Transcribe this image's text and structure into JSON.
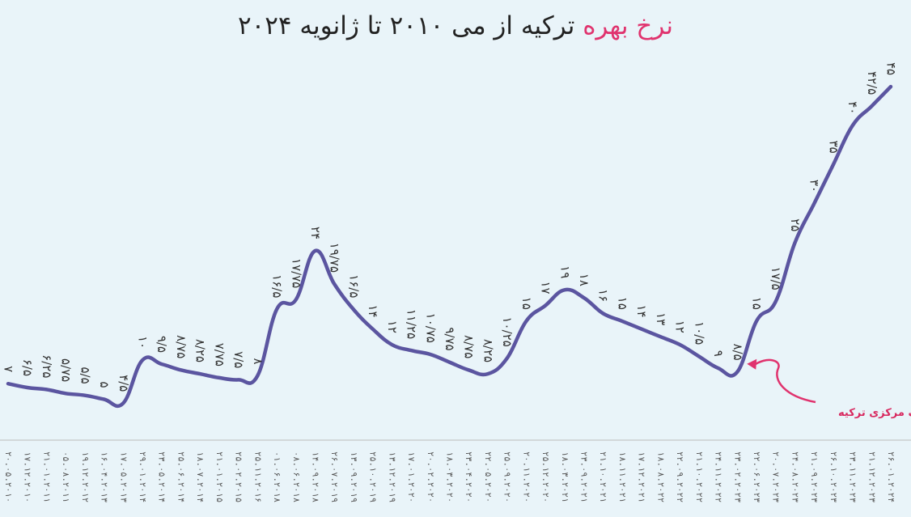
{
  "title": {
    "part1": "نرخ بهره",
    "part2": "ترکیه از می ۲۰۱۰ تا ژانویه ۲۰۲۴"
  },
  "colors": {
    "line": "#5b55a0",
    "accent": "#e0336e",
    "text": "#333333",
    "axis": "#bbbbbb"
  },
  "chart_data": {
    "type": "line",
    "title": "نرخ بهره ترکیه از می ۲۰۱۰ تا ژانویه ۲۰۲۴",
    "ylabel": "",
    "xlabel": "",
    "ylim": [
      0,
      50
    ],
    "grid": false,
    "points": [
      {
        "date": "۲۰.۰۵.۲۰۱۰",
        "value": 7,
        "label": "۷"
      },
      {
        "date": "۱۷.۱۲.۲۰۱۰",
        "value": 6.5,
        "label": "۶/۵"
      },
      {
        "date": "۲۱.۰۱.۲۰۱۱",
        "value": 6.25,
        "label": "۶/۲۵"
      },
      {
        "date": "۰۵.۰۸.۲۰۱۱",
        "value": 5.75,
        "label": "۵/۷۵"
      },
      {
        "date": "۱۹.۱۲.۲۰۱۲",
        "value": 5.5,
        "label": "۵/۵"
      },
      {
        "date": "۱۶.۰۴.۲۰۱۳",
        "value": 5,
        "label": "۵"
      },
      {
        "date": "۱۷.۰۵.۲۰۱۳",
        "value": 4.5,
        "label": "۴/۵"
      },
      {
        "date": "۲۹.۰۱.۲۰۱۴",
        "value": 10,
        "label": "۱۰"
      },
      {
        "date": "۲۳.۰۵.۲۰۱۴",
        "value": 9.5,
        "label": "۹/۵"
      },
      {
        "date": "۲۵.۰۶.۲۰۱۴",
        "value": 8.75,
        "label": "۸/۷۵"
      },
      {
        "date": "۱۸.۰۷.۲۰۱۴",
        "value": 8.25,
        "label": "۸/۲۵"
      },
      {
        "date": "۲۱.۰۱.۲۰۱۵",
        "value": 7.75,
        "label": "۷/۷۵"
      },
      {
        "date": "۲۵.۰۲.۲۰۱۵",
        "value": 7.5,
        "label": "۷/۵"
      },
      {
        "date": "۲۵.۱۱.۲۰۱۶",
        "value": 8,
        "label": "۸"
      },
      {
        "date": "۰۱.۰۶.۲۰۱۸",
        "value": 16.5,
        "label": "۱۶/۵"
      },
      {
        "date": "۰۸.۰۶.۲۰۱۸",
        "value": 17.75,
        "label": "۱۷/۷۵"
      },
      {
        "date": "۱۴.۰۹.۲۰۱۸",
        "value": 24,
        "label": "۲۴"
      },
      {
        "date": "۲۶.۰۷.۲۰۱۹",
        "value": 19.75,
        "label": "۱۹/۷۵"
      },
      {
        "date": "۱۳.۰۹.۲۰۱۹",
        "value": 16.5,
        "label": "۱۶/۵"
      },
      {
        "date": "۲۵.۱۰.۲۰۱۹",
        "value": 14,
        "label": "۱۴"
      },
      {
        "date": "۱۳.۱۲.۲۰۱۹",
        "value": 12,
        "label": "۱۲"
      },
      {
        "date": "۱۷.۰۱.۲۰۲۰",
        "value": 11.25,
        "label": "۱۱/۲۵"
      },
      {
        "date": "۲۰.۰۲.۲۰۲۰",
        "value": 10.75,
        "label": "۱۰/۷۵"
      },
      {
        "date": "۱۸.۰۳.۲۰۲۰",
        "value": 9.75,
        "label": "۹/۷۵"
      },
      {
        "date": "۲۳.۰۴.۲۰۲۰",
        "value": 8.75,
        "label": "۸/۷۵"
      },
      {
        "date": "۲۲.۰۵.۲۰۲۰",
        "value": 8.25,
        "label": "۸/۲۵"
      },
      {
        "date": "۲۵.۰۹.۲۰۲۰",
        "value": 10.25,
        "label": "۱۰/۲۵"
      },
      {
        "date": "۲۰.۱۱.۲۰۲۰",
        "value": 15,
        "label": "۱۵"
      },
      {
        "date": "۲۵.۱۲.۲۰۲۰",
        "value": 17,
        "label": "۱۷"
      },
      {
        "date": "۱۸.۰۳.۲۰۲۱",
        "value": 19,
        "label": "۱۹"
      },
      {
        "date": "۲۳.۰۹.۲۰۲۱",
        "value": 18,
        "label": "۱۸"
      },
      {
        "date": "۲۱.۱۰.۲۰۲۱",
        "value": 16,
        "label": "۱۶"
      },
      {
        "date": "۱۸.۱۱.۲۰۲۱",
        "value": 15,
        "label": "۱۵"
      },
      {
        "date": "۱۷.۱۲.۲۰۲۱",
        "value": 14,
        "label": "۱۴"
      },
      {
        "date": "۱۸.۰۸.۲۰۲۲",
        "value": 13,
        "label": "۱۳"
      },
      {
        "date": "۲۲.۰۹.۲۰۲۲",
        "value": 12,
        "label": "۱۲"
      },
      {
        "date": "۲۱.۱۰.۲۰۲۲",
        "value": 10.5,
        "label": "۱۰/۵"
      },
      {
        "date": "۲۴.۱۱.۲۰۲۲",
        "value": 9,
        "label": "۹"
      },
      {
        "date": "۲۳.۰۲.۲۰۲۳",
        "value": 8.5,
        "label": "۸/۵",
        "highlight": true
      },
      {
        "date": "۲۲.۰۶.۲۰۲۳",
        "value": 15,
        "label": "۱۵"
      },
      {
        "date": "۲۰.۰۷.۲۰۲۳",
        "value": 17.5,
        "label": "۱۷/۵"
      },
      {
        "date": "۲۴.۰۸.۲۰۲۳",
        "value": 25,
        "label": "۲۵"
      },
      {
        "date": "۲۱.۰۹.۲۰۲۳",
        "value": 30,
        "label": "۳۰"
      },
      {
        "date": "۲۶.۱۰.۲۰۲۳",
        "value": 35,
        "label": "۳۵"
      },
      {
        "date": "۲۳.۱۱.۲۰۲۳",
        "value": 40,
        "label": "۴۰"
      },
      {
        "date": "۲۱.۱۲.۲۰۲۳",
        "value": 42.5,
        "label": "۴۲/۵"
      },
      {
        "date": "۲۶.۰۱.۲۰۲۴",
        "value": 45,
        "label": "۴۵"
      }
    ],
    "annotation": {
      "text": "انتصاب حفیظه ارکان به ریاست بانک مرکزی ترکیه",
      "point": "۲۳.۰۲.۲۰۲۳"
    }
  }
}
